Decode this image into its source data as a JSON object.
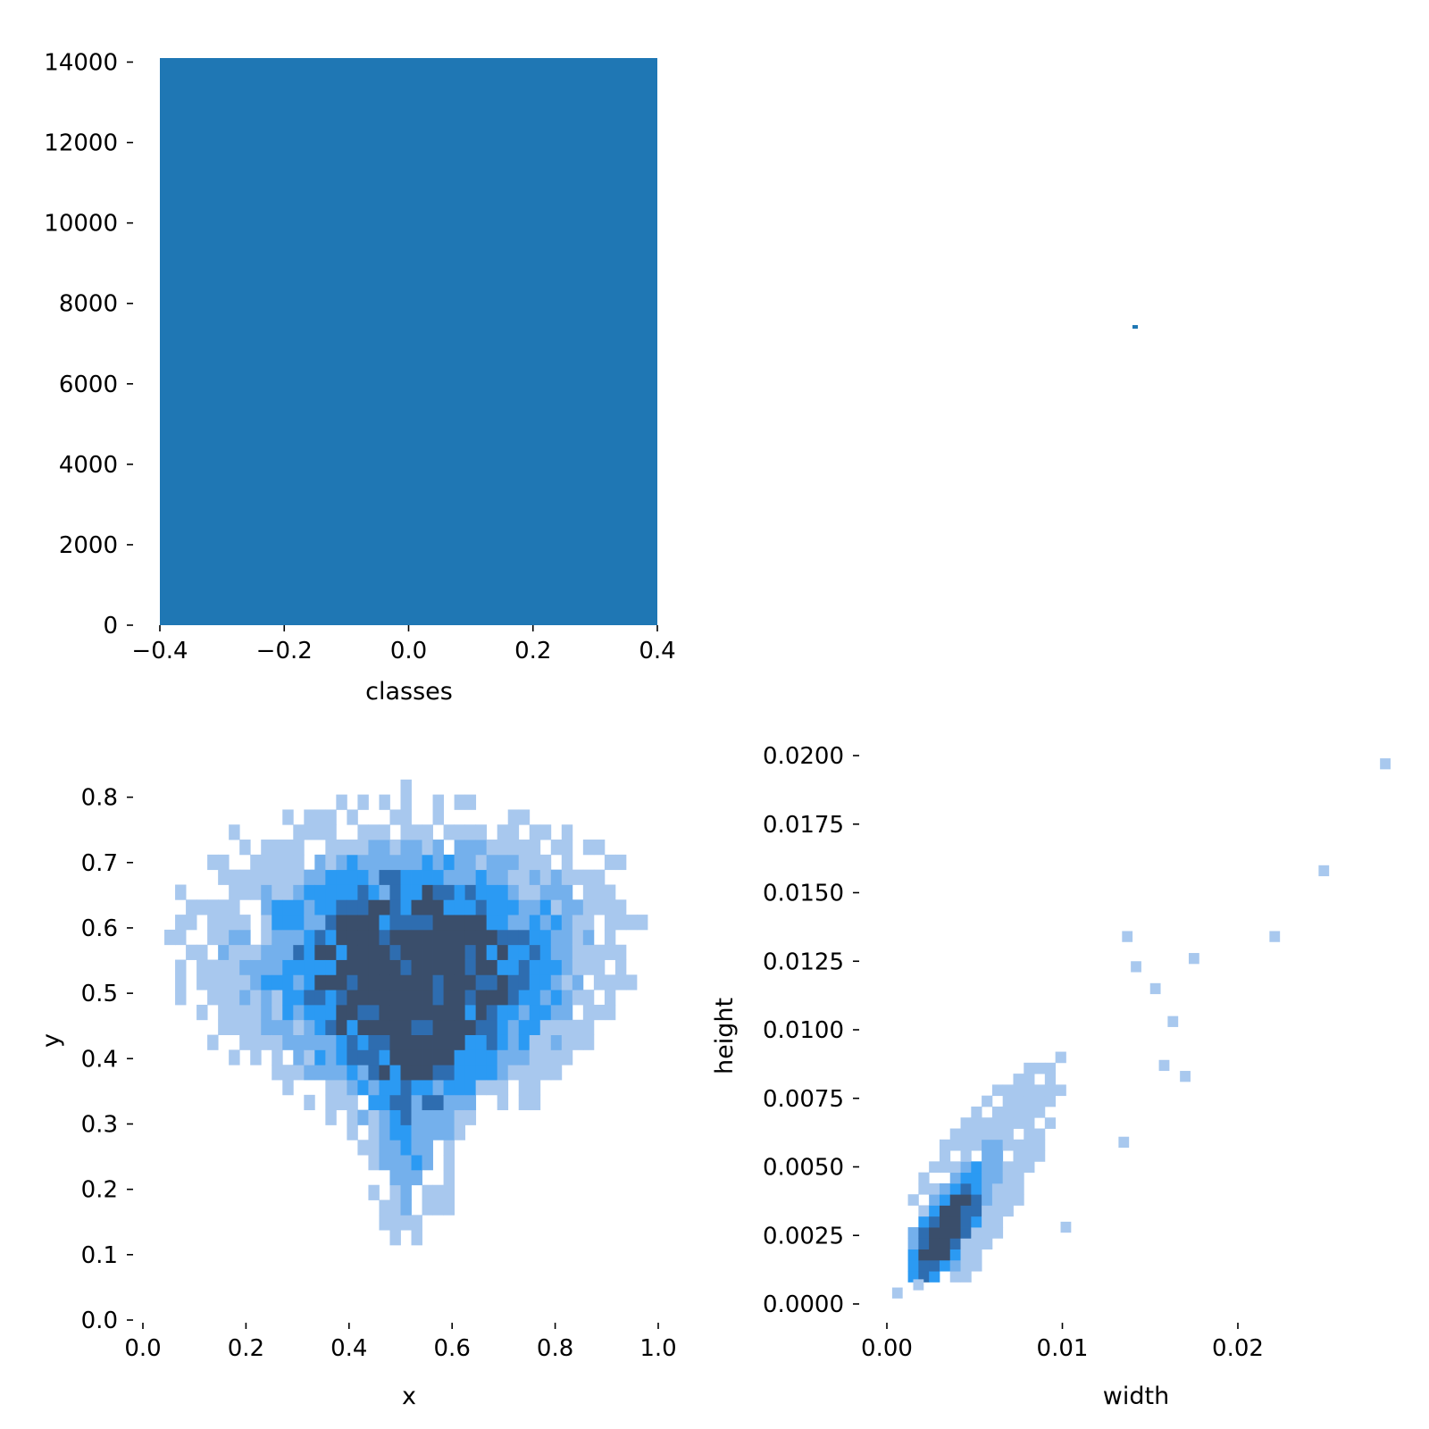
{
  "chart_data": [
    {
      "id": "classes_hist",
      "type": "bar",
      "xlabel": "classes",
      "ylabel": "",
      "categories": [
        "0"
      ],
      "bins": [
        [
          -0.4,
          0.4
        ]
      ],
      "values": [
        14100
      ],
      "xlim": [
        -0.4,
        0.4
      ],
      "ylim": [
        0,
        14100
      ],
      "xticks": [
        -0.4,
        -0.2,
        0.0,
        0.2,
        0.4
      ],
      "xtick_labels": [
        "−0.4",
        "−0.2",
        "0.0",
        "0.2",
        "0.4"
      ],
      "yticks": [
        0,
        2000,
        4000,
        6000,
        8000,
        10000,
        12000,
        14000
      ],
      "ytick_labels": [
        "0",
        "2000",
        "4000",
        "6000",
        "8000",
        "10000",
        "12000",
        "14000"
      ],
      "color": "#1f77b4",
      "grid": false
    },
    {
      "id": "top_right_empty",
      "type": "scatter",
      "note_point": {
        "x": 0.0141,
        "y": 0.0141
      },
      "color": "#1f77b4"
    },
    {
      "id": "xy_hist2d",
      "type": "heatmap",
      "xlabel": "x",
      "ylabel": "y",
      "xlim": [
        0.0,
        1.0
      ],
      "ylim": [
        0.0,
        0.85
      ],
      "xticks": [
        0.0,
        0.2,
        0.4,
        0.6,
        0.8,
        1.0
      ],
      "xtick_labels": [
        "0.0",
        "0.2",
        "0.4",
        "0.6",
        "0.8",
        "1.0"
      ],
      "yticks": [
        0.0,
        0.1,
        0.2,
        0.3,
        0.4,
        0.5,
        0.6,
        0.7,
        0.8
      ],
      "ytick_labels": [
        "0.0",
        "0.1",
        "0.2",
        "0.3",
        "0.4",
        "0.5",
        "0.6",
        "0.7",
        "0.8"
      ],
      "bins": [
        45,
        34
      ],
      "density_clusters": [
        {
          "cx": 0.45,
          "cy": 0.52,
          "sx": 0.12,
          "sy": 0.1,
          "weight": 1.0
        },
        {
          "cx": 0.6,
          "cy": 0.5,
          "sx": 0.12,
          "sy": 0.1,
          "weight": 0.9
        },
        {
          "cx": 0.52,
          "cy": 0.3,
          "sx": 0.05,
          "sy": 0.12,
          "weight": 0.5
        },
        {
          "cx": 0.5,
          "cy": 0.6,
          "sx": 0.25,
          "sy": 0.12,
          "weight": 0.35
        },
        {
          "cx": 0.78,
          "cy": 0.58,
          "sx": 0.12,
          "sy": 0.1,
          "weight": 0.18
        },
        {
          "cx": 0.15,
          "cy": 0.55,
          "sx": 0.08,
          "sy": 0.1,
          "weight": 0.1
        }
      ],
      "colors": [
        "#a8c8ee",
        "#74b0ec",
        "#2b9af3",
        "#2e6db0",
        "#3a4e6b"
      ],
      "grid": false
    },
    {
      "id": "wh_hist2d",
      "type": "heatmap",
      "xlabel": "width",
      "ylabel": "height",
      "xlim": [
        -0.0015,
        0.0295
      ],
      "ylim": [
        -0.0005,
        0.0205
      ],
      "xticks": [
        0.0,
        0.01,
        0.02
      ],
      "xtick_labels": [
        "0.00",
        "0.01",
        "0.02"
      ],
      "yticks": [
        0.0,
        0.0025,
        0.005,
        0.0075,
        0.01,
        0.0125,
        0.015,
        0.0175,
        0.02
      ],
      "ytick_labels": [
        "0.0000",
        "0.0025",
        "0.0050",
        "0.0075",
        "0.0100",
        "0.0125",
        "0.0150",
        "0.0175",
        "0.0200"
      ],
      "bins": [
        48,
        50
      ],
      "density_center": {
        "w": 0.003,
        "h": 0.0025
      },
      "outliers": [
        {
          "w": 0.0281,
          "h": 0.0195
        },
        {
          "w": 0.0246,
          "h": 0.0156
        },
        {
          "w": 0.0218,
          "h": 0.0132
        },
        {
          "w": 0.0172,
          "h": 0.0124
        },
        {
          "w": 0.0134,
          "h": 0.0132
        },
        {
          "w": 0.0139,
          "h": 0.0121
        },
        {
          "w": 0.015,
          "h": 0.0113
        },
        {
          "w": 0.016,
          "h": 0.0101
        },
        {
          "w": 0.0155,
          "h": 0.0085
        },
        {
          "w": 0.0167,
          "h": 0.0081
        },
        {
          "w": 0.0132,
          "h": 0.0057
        },
        {
          "w": 0.0099,
          "h": 0.0026
        },
        {
          "w": 0.0003,
          "h": 0.0002
        },
        {
          "w": 0.0015,
          "h": 0.0005
        }
      ],
      "colors": [
        "#a8c8ee",
        "#74b0ec",
        "#2b9af3",
        "#2e6db0",
        "#3a4e6b"
      ],
      "grid": false
    }
  ]
}
